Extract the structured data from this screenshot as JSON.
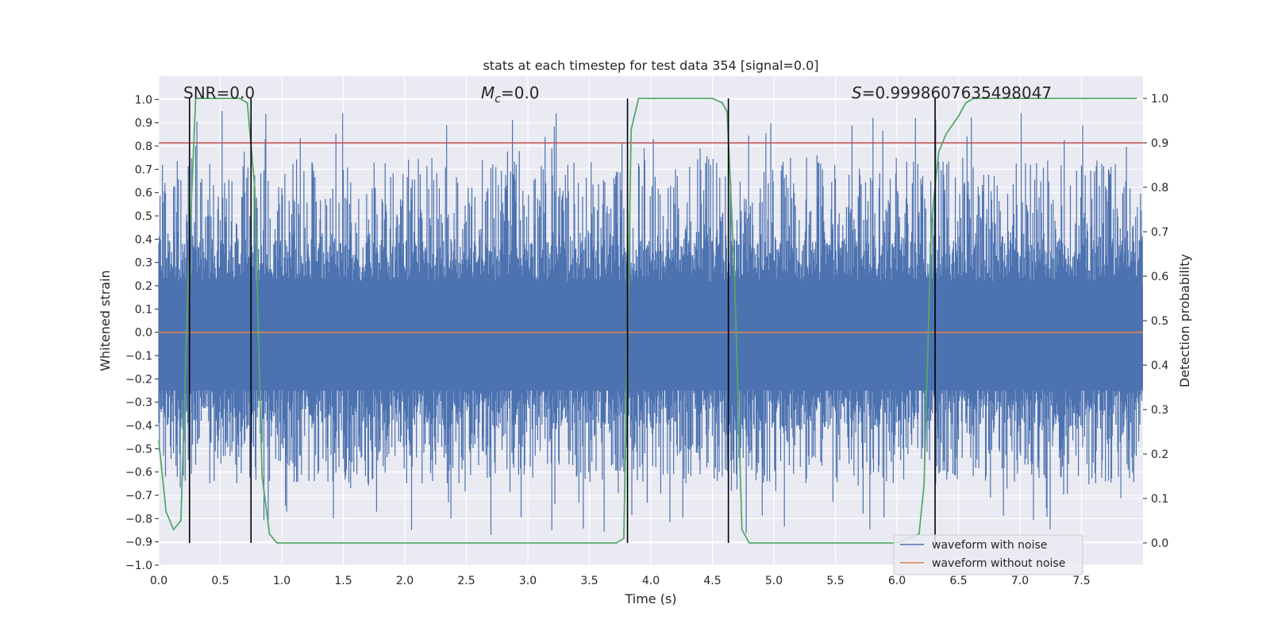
{
  "chart_data": {
    "type": "line",
    "title": "stats at each timestep for test data 354 [signal=0.0]",
    "xlabel": "Time (s)",
    "ylabel": "Whitened strain",
    "y2label": "Detection probability",
    "xlim": [
      0.0,
      8.0
    ],
    "ylim": [
      -1.0,
      1.1
    ],
    "y2lim": [
      -0.05,
      1.05
    ],
    "xticks": [
      "0.0",
      "0.5",
      "1.0",
      "1.5",
      "2.0",
      "2.5",
      "3.0",
      "3.5",
      "4.0",
      "4.5",
      "5.0",
      "5.5",
      "6.0",
      "6.5",
      "7.0",
      "7.5"
    ],
    "xtick_values": [
      0,
      0.5,
      1,
      1.5,
      2,
      2.5,
      3,
      3.5,
      4,
      4.5,
      5,
      5.5,
      6,
      6.5,
      7,
      7.5
    ],
    "yticks": [
      "1.0",
      "0.9",
      "0.8",
      "0.7",
      "0.6",
      "0.5",
      "0.4",
      "0.3",
      "0.2",
      "0.1",
      "0.0",
      "−0.1",
      "−0.2",
      "−0.3",
      "−0.4",
      "−0.5",
      "−0.6",
      "−0.7",
      "−0.8",
      "−0.9",
      "−1.0"
    ],
    "ytick_values": [
      1.0,
      0.9,
      0.8,
      0.7,
      0.6,
      0.5,
      0.4,
      0.3,
      0.2,
      0.1,
      0.0,
      -0.1,
      -0.2,
      -0.3,
      -0.4,
      -0.5,
      -0.6,
      -0.7,
      -0.8,
      -0.9,
      -1.0
    ],
    "y2ticks": [
      "1.0",
      "0.9",
      "0.8",
      "0.7",
      "0.6",
      "0.5",
      "0.4",
      "0.3",
      "0.2",
      "0.1",
      "0.0"
    ],
    "y2tick_values": [
      1.0,
      0.9,
      0.8,
      0.7,
      0.6,
      0.5,
      0.4,
      0.3,
      0.2,
      0.1,
      0.0
    ],
    "annotations": {
      "snr": "SNR=0.0",
      "mc_symbol": "M",
      "mc_sub": "c",
      "mc_value": "=0.0",
      "s_symbol": "S",
      "s_value": "=0.9998607635498047"
    },
    "threshold_line": {
      "y2": 0.9,
      "color": "#c44e52"
    },
    "event_lines_x": [
      0.25,
      0.75,
      3.81,
      4.63,
      6.31
    ],
    "noisy_waveform": {
      "name": "waveform with noise",
      "color": "#4c72b0",
      "core_band": [
        -0.4,
        0.4
      ],
      "peak_range": [
        -0.88,
        0.98
      ],
      "samples": 1600,
      "seed": 354
    },
    "clean_waveform": {
      "name": "waveform without noise",
      "color": "#dd8452",
      "value": 0.0
    },
    "probability": {
      "name": "detection probability",
      "color": "#55a868",
      "x": [
        0.0,
        0.06,
        0.12,
        0.18,
        0.24,
        0.3,
        0.36,
        0.5,
        0.66,
        0.72,
        0.78,
        0.84,
        0.9,
        0.96,
        1.02,
        1.5,
        1.75,
        2.0,
        3.5,
        3.72,
        3.78,
        3.84,
        3.9,
        3.96,
        4.0,
        4.5,
        4.58,
        4.62,
        4.68,
        4.74,
        4.8,
        4.86,
        5.0,
        6.0,
        6.18,
        6.22,
        6.28,
        6.34,
        6.4,
        6.5,
        6.56,
        6.62,
        6.8,
        7.0,
        7.5,
        7.95
      ],
      "y": [
        0.23,
        0.07,
        0.03,
        0.05,
        0.6,
        1.0,
        1.0,
        1.0,
        1.0,
        0.99,
        0.8,
        0.15,
        0.02,
        0.0,
        0.0,
        0.0,
        0.0,
        0.0,
        0.0,
        0.0,
        0.01,
        0.93,
        1.0,
        1.0,
        1.0,
        1.0,
        0.99,
        0.97,
        0.6,
        0.03,
        0.0,
        0.0,
        0.0,
        0.0,
        0.02,
        0.13,
        0.72,
        0.88,
        0.92,
        0.96,
        0.99,
        1.0,
        1.0,
        1.0,
        1.0,
        1.0
      ]
    },
    "legend": {
      "position": "lower-right",
      "entries": [
        "waveform with noise",
        "waveform without noise"
      ]
    },
    "colors": {
      "plot_bg": "#eaeaf2",
      "grid": "#ffffff",
      "text": "#262626"
    }
  }
}
